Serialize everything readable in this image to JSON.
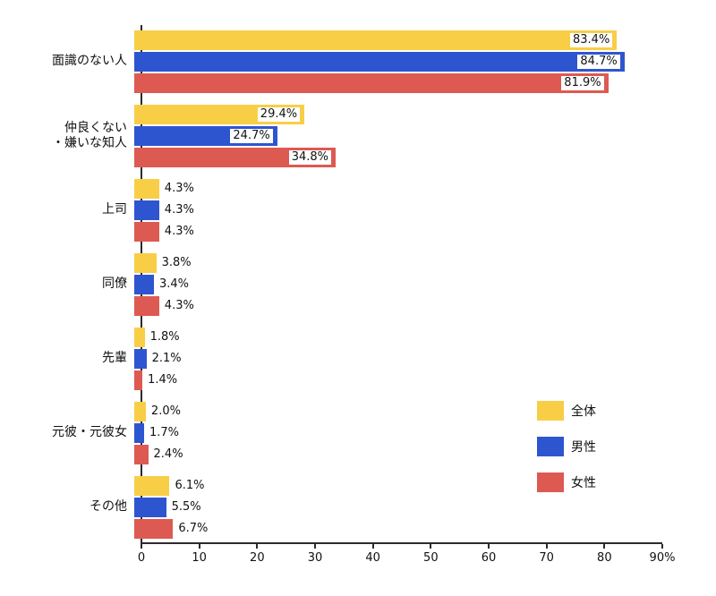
{
  "chart_data": {
    "type": "bar",
    "orientation": "horizontal",
    "title": "",
    "categories": [
      "面識のない人",
      "仲良くない\n・嫌いな知人",
      "上司",
      "同僚",
      "先輩",
      "元彼・元彼女",
      "その他"
    ],
    "series": [
      {
        "name": "全体",
        "color": "#F8CE46",
        "values": [
          83.4,
          29.4,
          4.3,
          3.8,
          1.8,
          2.0,
          6.1
        ]
      },
      {
        "name": "男性",
        "color": "#2E55D0",
        "values": [
          84.7,
          24.7,
          4.3,
          3.4,
          2.1,
          1.7,
          5.5
        ]
      },
      {
        "name": "女性",
        "color": "#DD5A52",
        "values": [
          81.9,
          34.8,
          4.3,
          4.3,
          1.4,
          2.4,
          6.7
        ]
      }
    ],
    "xlim": [
      0,
      90
    ],
    "x_ticks": [
      0,
      10,
      20,
      30,
      40,
      50,
      60,
      70,
      80,
      90
    ],
    "x_tick_labels": [
      "0",
      "10",
      "20",
      "30",
      "40",
      "50",
      "60",
      "70",
      "80",
      "90%"
    ],
    "value_suffix": "%",
    "grid": false,
    "legend_position": "right-middle",
    "axis_color": "#2b2b2b"
  }
}
